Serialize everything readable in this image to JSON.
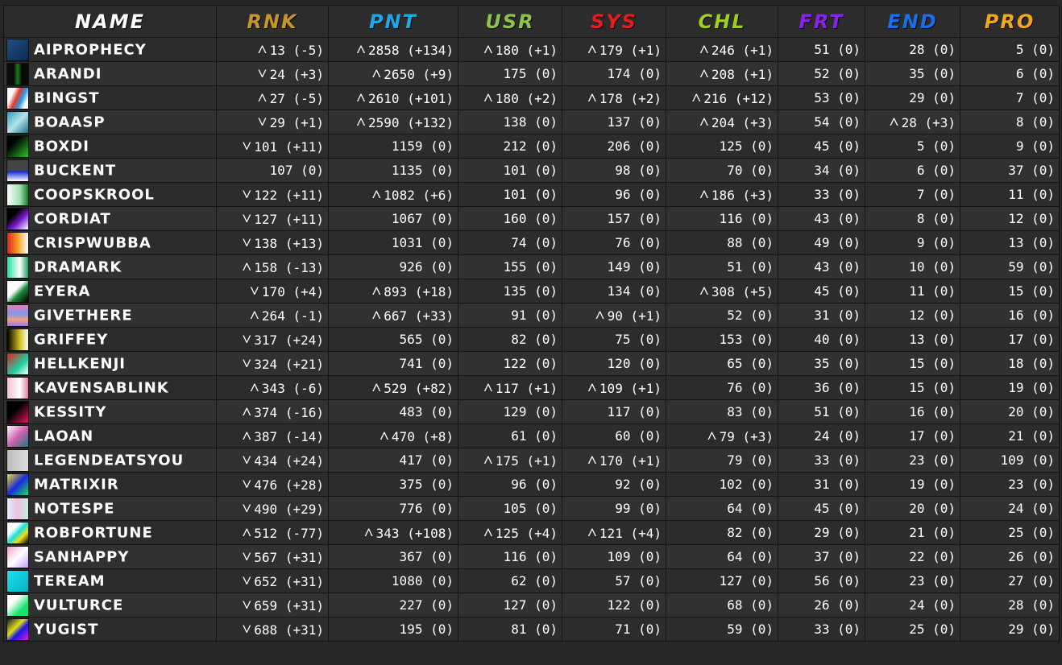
{
  "columns": [
    {
      "key": "name",
      "label": "NAME",
      "color": "#ffffff"
    },
    {
      "key": "rnk",
      "label": "RNK",
      "color": "#c7952b"
    },
    {
      "key": "pnt",
      "label": "PNT",
      "color": "#1fa6e6"
    },
    {
      "key": "usr",
      "label": "USR",
      "color": "#8fc24a"
    },
    {
      "key": "sys",
      "label": "SYS",
      "color": "#e0201e"
    },
    {
      "key": "chl",
      "label": "CHL",
      "color": "#9ecf1a"
    },
    {
      "key": "frt",
      "label": "FRT",
      "color": "#8b23e6"
    },
    {
      "key": "end",
      "label": "END",
      "color": "#1c6ee8"
    },
    {
      "key": "pro",
      "label": "PRO",
      "color": "#f0a818"
    }
  ],
  "trend_colors": {
    "up": "#9ef542",
    "down": "#f24a3d",
    "neutral": "#ffffff"
  },
  "rows": [
    {
      "name": "AIPROPHECY",
      "avatar": "avatar-1",
      "cells": [
        [
          "13",
          "(-5)",
          "up"
        ],
        [
          "2858",
          "(+134)",
          "up"
        ],
        [
          "180",
          "(+1)",
          "up"
        ],
        [
          "179",
          "(+1)",
          "up"
        ],
        [
          "246",
          "(+1)",
          "up"
        ],
        [
          "51",
          "(0)",
          "neutral"
        ],
        [
          "28",
          "(0)",
          "neutral"
        ],
        [
          "5",
          "(0)",
          "neutral"
        ]
      ]
    },
    {
      "name": "ARANDI",
      "avatar": "avatar-2",
      "cells": [
        [
          "24",
          "(+3)",
          "down"
        ],
        [
          "2650",
          "(+9)",
          "up"
        ],
        [
          "175",
          "(0)",
          "neutral"
        ],
        [
          "174",
          "(0)",
          "neutral"
        ],
        [
          "208",
          "(+1)",
          "up"
        ],
        [
          "52",
          "(0)",
          "neutral"
        ],
        [
          "35",
          "(0)",
          "neutral"
        ],
        [
          "6",
          "(0)",
          "neutral"
        ]
      ]
    },
    {
      "name": "BINGST",
      "avatar": "avatar-3",
      "cells": [
        [
          "27",
          "(-5)",
          "up"
        ],
        [
          "2610",
          "(+101)",
          "up"
        ],
        [
          "180",
          "(+2)",
          "up"
        ],
        [
          "178",
          "(+2)",
          "up"
        ],
        [
          "216",
          "(+12)",
          "up"
        ],
        [
          "53",
          "(0)",
          "neutral"
        ],
        [
          "29",
          "(0)",
          "neutral"
        ],
        [
          "7",
          "(0)",
          "neutral"
        ]
      ]
    },
    {
      "name": "BOAASP",
      "avatar": "avatar-4",
      "cells": [
        [
          "29",
          "(+1)",
          "down"
        ],
        [
          "2590",
          "(+132)",
          "up"
        ],
        [
          "138",
          "(0)",
          "neutral"
        ],
        [
          "137",
          "(0)",
          "neutral"
        ],
        [
          "204",
          "(+3)",
          "up"
        ],
        [
          "54",
          "(0)",
          "neutral"
        ],
        [
          "28",
          "(+3)",
          "up"
        ],
        [
          "8",
          "(0)",
          "neutral"
        ]
      ]
    },
    {
      "name": "BOXDI",
      "avatar": "avatar-5",
      "cells": [
        [
          "101",
          "(+11)",
          "down"
        ],
        [
          "1159",
          "(0)",
          "neutral"
        ],
        [
          "212",
          "(0)",
          "neutral"
        ],
        [
          "206",
          "(0)",
          "neutral"
        ],
        [
          "125",
          "(0)",
          "neutral"
        ],
        [
          "45",
          "(0)",
          "neutral"
        ],
        [
          "5",
          "(0)",
          "neutral"
        ],
        [
          "9",
          "(0)",
          "neutral"
        ]
      ]
    },
    {
      "name": "BUCKENT",
      "avatar": "avatar-6",
      "cells": [
        [
          "107",
          "(0)",
          "neutral"
        ],
        [
          "1135",
          "(0)",
          "neutral"
        ],
        [
          "101",
          "(0)",
          "neutral"
        ],
        [
          "98",
          "(0)",
          "neutral"
        ],
        [
          "70",
          "(0)",
          "neutral"
        ],
        [
          "34",
          "(0)",
          "neutral"
        ],
        [
          "6",
          "(0)",
          "neutral"
        ],
        [
          "37",
          "(0)",
          "neutral"
        ]
      ]
    },
    {
      "name": "COOPSKROOL",
      "avatar": "avatar-7",
      "cells": [
        [
          "122",
          "(+11)",
          "down"
        ],
        [
          "1082",
          "(+6)",
          "up"
        ],
        [
          "101",
          "(0)",
          "neutral"
        ],
        [
          "96",
          "(0)",
          "neutral"
        ],
        [
          "186",
          "(+3)",
          "up"
        ],
        [
          "33",
          "(0)",
          "neutral"
        ],
        [
          "7",
          "(0)",
          "neutral"
        ],
        [
          "11",
          "(0)",
          "neutral"
        ]
      ]
    },
    {
      "name": "CORDIAT",
      "avatar": "avatar-8",
      "cells": [
        [
          "127",
          "(+11)",
          "down"
        ],
        [
          "1067",
          "(0)",
          "neutral"
        ],
        [
          "160",
          "(0)",
          "neutral"
        ],
        [
          "157",
          "(0)",
          "neutral"
        ],
        [
          "116",
          "(0)",
          "neutral"
        ],
        [
          "43",
          "(0)",
          "neutral"
        ],
        [
          "8",
          "(0)",
          "neutral"
        ],
        [
          "12",
          "(0)",
          "neutral"
        ]
      ]
    },
    {
      "name": "CRISPWUBBA",
      "avatar": "avatar-9",
      "cells": [
        [
          "138",
          "(+13)",
          "down"
        ],
        [
          "1031",
          "(0)",
          "neutral"
        ],
        [
          "74",
          "(0)",
          "neutral"
        ],
        [
          "76",
          "(0)",
          "neutral"
        ],
        [
          "88",
          "(0)",
          "neutral"
        ],
        [
          "49",
          "(0)",
          "neutral"
        ],
        [
          "9",
          "(0)",
          "neutral"
        ],
        [
          "13",
          "(0)",
          "neutral"
        ]
      ]
    },
    {
      "name": "DRAMARK",
      "avatar": "avatar-10",
      "cells": [
        [
          "158",
          "(-13)",
          "up"
        ],
        [
          "926",
          "(0)",
          "neutral"
        ],
        [
          "155",
          "(0)",
          "neutral"
        ],
        [
          "149",
          "(0)",
          "neutral"
        ],
        [
          "51",
          "(0)",
          "neutral"
        ],
        [
          "43",
          "(0)",
          "neutral"
        ],
        [
          "10",
          "(0)",
          "neutral"
        ],
        [
          "59",
          "(0)",
          "neutral"
        ]
      ]
    },
    {
      "name": "EYERA",
      "avatar": "avatar-11",
      "cells": [
        [
          "170",
          "(+4)",
          "down"
        ],
        [
          "893",
          "(+18)",
          "up"
        ],
        [
          "135",
          "(0)",
          "neutral"
        ],
        [
          "134",
          "(0)",
          "neutral"
        ],
        [
          "308",
          "(+5)",
          "up"
        ],
        [
          "45",
          "(0)",
          "neutral"
        ],
        [
          "11",
          "(0)",
          "neutral"
        ],
        [
          "15",
          "(0)",
          "neutral"
        ]
      ]
    },
    {
      "name": "GIVETHERE",
      "avatar": "avatar-12",
      "cells": [
        [
          "264",
          "(-1)",
          "up"
        ],
        [
          "667",
          "(+33)",
          "up"
        ],
        [
          "91",
          "(0)",
          "neutral"
        ],
        [
          "90",
          "(+1)",
          "up"
        ],
        [
          "52",
          "(0)",
          "neutral"
        ],
        [
          "31",
          "(0)",
          "neutral"
        ],
        [
          "12",
          "(0)",
          "neutral"
        ],
        [
          "16",
          "(0)",
          "neutral"
        ]
      ]
    },
    {
      "name": "GRIFFEY",
      "avatar": "avatar-13",
      "cells": [
        [
          "317",
          "(+24)",
          "down"
        ],
        [
          "565",
          "(0)",
          "neutral"
        ],
        [
          "82",
          "(0)",
          "neutral"
        ],
        [
          "75",
          "(0)",
          "neutral"
        ],
        [
          "153",
          "(0)",
          "neutral"
        ],
        [
          "40",
          "(0)",
          "neutral"
        ],
        [
          "13",
          "(0)",
          "neutral"
        ],
        [
          "17",
          "(0)",
          "neutral"
        ]
      ]
    },
    {
      "name": "HELLKENJI",
      "avatar": "avatar-14",
      "cells": [
        [
          "324",
          "(+21)",
          "down"
        ],
        [
          "741",
          "(0)",
          "neutral"
        ],
        [
          "122",
          "(0)",
          "neutral"
        ],
        [
          "120",
          "(0)",
          "neutral"
        ],
        [
          "65",
          "(0)",
          "neutral"
        ],
        [
          "35",
          "(0)",
          "neutral"
        ],
        [
          "15",
          "(0)",
          "neutral"
        ],
        [
          "18",
          "(0)",
          "neutral"
        ]
      ]
    },
    {
      "name": "KAVENSABLINK",
      "avatar": "avatar-15",
      "cells": [
        [
          "343",
          "(-6)",
          "up"
        ],
        [
          "529",
          "(+82)",
          "up"
        ],
        [
          "117",
          "(+1)",
          "up"
        ],
        [
          "109",
          "(+1)",
          "up"
        ],
        [
          "76",
          "(0)",
          "neutral"
        ],
        [
          "36",
          "(0)",
          "neutral"
        ],
        [
          "15",
          "(0)",
          "neutral"
        ],
        [
          "19",
          "(0)",
          "neutral"
        ]
      ]
    },
    {
      "name": "KESSITY",
      "avatar": "avatar-16",
      "cells": [
        [
          "374",
          "(-16)",
          "up"
        ],
        [
          "483",
          "(0)",
          "neutral"
        ],
        [
          "129",
          "(0)",
          "neutral"
        ],
        [
          "117",
          "(0)",
          "neutral"
        ],
        [
          "83",
          "(0)",
          "neutral"
        ],
        [
          "51",
          "(0)",
          "neutral"
        ],
        [
          "16",
          "(0)",
          "neutral"
        ],
        [
          "20",
          "(0)",
          "neutral"
        ]
      ]
    },
    {
      "name": "LAOAN",
      "avatar": "avatar-17",
      "cells": [
        [
          "387",
          "(-14)",
          "up"
        ],
        [
          "470",
          "(+8)",
          "up"
        ],
        [
          "61",
          "(0)",
          "neutral"
        ],
        [
          "60",
          "(0)",
          "neutral"
        ],
        [
          "79",
          "(+3)",
          "up"
        ],
        [
          "24",
          "(0)",
          "neutral"
        ],
        [
          "17",
          "(0)",
          "neutral"
        ],
        [
          "21",
          "(0)",
          "neutral"
        ]
      ]
    },
    {
      "name": "LEGENDEATSYOU",
      "avatar": "avatar-18",
      "cells": [
        [
          "434",
          "(+24)",
          "down"
        ],
        [
          "417",
          "(0)",
          "neutral"
        ],
        [
          "175",
          "(+1)",
          "up"
        ],
        [
          "170",
          "(+1)",
          "up"
        ],
        [
          "79",
          "(0)",
          "neutral"
        ],
        [
          "33",
          "(0)",
          "neutral"
        ],
        [
          "23",
          "(0)",
          "neutral"
        ],
        [
          "109",
          "(0)",
          "neutral"
        ]
      ]
    },
    {
      "name": "MATRIXIR",
      "avatar": "avatar-19",
      "cells": [
        [
          "476",
          "(+28)",
          "down"
        ],
        [
          "375",
          "(0)",
          "neutral"
        ],
        [
          "96",
          "(0)",
          "neutral"
        ],
        [
          "92",
          "(0)",
          "neutral"
        ],
        [
          "102",
          "(0)",
          "neutral"
        ],
        [
          "31",
          "(0)",
          "neutral"
        ],
        [
          "19",
          "(0)",
          "neutral"
        ],
        [
          "23",
          "(0)",
          "neutral"
        ]
      ]
    },
    {
      "name": "NOTESPE",
      "avatar": "avatar-20",
      "cells": [
        [
          "490",
          "(+29)",
          "down"
        ],
        [
          "776",
          "(0)",
          "neutral"
        ],
        [
          "105",
          "(0)",
          "neutral"
        ],
        [
          "99",
          "(0)",
          "neutral"
        ],
        [
          "64",
          "(0)",
          "neutral"
        ],
        [
          "45",
          "(0)",
          "neutral"
        ],
        [
          "20",
          "(0)",
          "neutral"
        ],
        [
          "24",
          "(0)",
          "neutral"
        ]
      ]
    },
    {
      "name": "ROBFORTUNE",
      "avatar": "avatar-21",
      "cells": [
        [
          "512",
          "(-77)",
          "up"
        ],
        [
          "343",
          "(+108)",
          "up"
        ],
        [
          "125",
          "(+4)",
          "up"
        ],
        [
          "121",
          "(+4)",
          "up"
        ],
        [
          "82",
          "(0)",
          "neutral"
        ],
        [
          "29",
          "(0)",
          "neutral"
        ],
        [
          "21",
          "(0)",
          "neutral"
        ],
        [
          "25",
          "(0)",
          "neutral"
        ]
      ]
    },
    {
      "name": "SANHAPPY",
      "avatar": "avatar-22",
      "cells": [
        [
          "567",
          "(+31)",
          "down"
        ],
        [
          "367",
          "(0)",
          "neutral"
        ],
        [
          "116",
          "(0)",
          "neutral"
        ],
        [
          "109",
          "(0)",
          "neutral"
        ],
        [
          "64",
          "(0)",
          "neutral"
        ],
        [
          "37",
          "(0)",
          "neutral"
        ],
        [
          "22",
          "(0)",
          "neutral"
        ],
        [
          "26",
          "(0)",
          "neutral"
        ]
      ]
    },
    {
      "name": "TEREAM",
      "avatar": "avatar-23",
      "cells": [
        [
          "652",
          "(+31)",
          "down"
        ],
        [
          "1080",
          "(0)",
          "neutral"
        ],
        [
          "62",
          "(0)",
          "neutral"
        ],
        [
          "57",
          "(0)",
          "neutral"
        ],
        [
          "127",
          "(0)",
          "neutral"
        ],
        [
          "56",
          "(0)",
          "neutral"
        ],
        [
          "23",
          "(0)",
          "neutral"
        ],
        [
          "27",
          "(0)",
          "neutral"
        ]
      ]
    },
    {
      "name": "VULTURCE",
      "avatar": "avatar-24",
      "cells": [
        [
          "659",
          "(+31)",
          "down"
        ],
        [
          "227",
          "(0)",
          "neutral"
        ],
        [
          "127",
          "(0)",
          "neutral"
        ],
        [
          "122",
          "(0)",
          "neutral"
        ],
        [
          "68",
          "(0)",
          "neutral"
        ],
        [
          "26",
          "(0)",
          "neutral"
        ],
        [
          "24",
          "(0)",
          "neutral"
        ],
        [
          "28",
          "(0)",
          "neutral"
        ]
      ]
    },
    {
      "name": "YUGIST",
      "avatar": "avatar-25",
      "cells": [
        [
          "688",
          "(+31)",
          "down"
        ],
        [
          "195",
          "(0)",
          "neutral"
        ],
        [
          "81",
          "(0)",
          "neutral"
        ],
        [
          "71",
          "(0)",
          "neutral"
        ],
        [
          "59",
          "(0)",
          "neutral"
        ],
        [
          "33",
          "(0)",
          "neutral"
        ],
        [
          "25",
          "(0)",
          "neutral"
        ],
        [
          "29",
          "(0)",
          "neutral"
        ]
      ]
    }
  ]
}
